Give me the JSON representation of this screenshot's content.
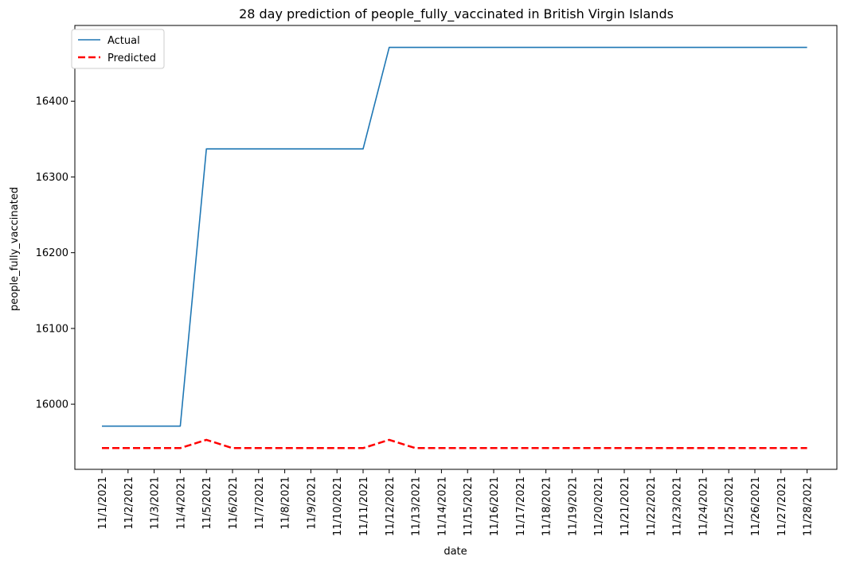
{
  "chart_data": {
    "type": "line",
    "title": "28 day prediction of people_fully_vaccinated in British Virgin Islands",
    "xlabel": "date",
    "ylabel": "people_fully_vaccinated",
    "x": [
      "11/1/2021",
      "11/2/2021",
      "11/3/2021",
      "11/4/2021",
      "11/5/2021",
      "11/6/2021",
      "11/7/2021",
      "11/8/2021",
      "11/9/2021",
      "11/10/2021",
      "11/11/2021",
      "11/12/2021",
      "11/13/2021",
      "11/14/2021",
      "11/15/2021",
      "11/16/2021",
      "11/17/2021",
      "11/18/2021",
      "11/19/2021",
      "11/20/2021",
      "11/21/2021",
      "11/22/2021",
      "11/23/2021",
      "11/24/2021",
      "11/25/2021",
      "11/26/2021",
      "11/27/2021",
      "11/28/2021"
    ],
    "yticks": [
      16000,
      16100,
      16200,
      16300,
      16400
    ],
    "ylim": [
      15914,
      16500
    ],
    "grid": false,
    "legend_position": "top-left",
    "series": [
      {
        "name": "Actual",
        "color": "#1f77b4",
        "style": "solid",
        "values": [
          15971,
          15971,
          15971,
          15971,
          16337,
          16337,
          16337,
          16337,
          16337,
          16337,
          16337,
          16471,
          16471,
          16471,
          16471,
          16471,
          16471,
          16471,
          16471,
          16471,
          16471,
          16471,
          16471,
          16471,
          16471,
          16471,
          16471,
          16471
        ]
      },
      {
        "name": "Predicted",
        "color": "#ff0000",
        "style": "dashed",
        "values": [
          15942,
          15942,
          15942,
          15942,
          15953,
          15942,
          15942,
          15942,
          15942,
          15942,
          15942,
          15953,
          15942,
          15942,
          15942,
          15942,
          15942,
          15942,
          15942,
          15942,
          15942,
          15942,
          15942,
          15942,
          15942,
          15942,
          15942,
          15942
        ]
      }
    ]
  }
}
